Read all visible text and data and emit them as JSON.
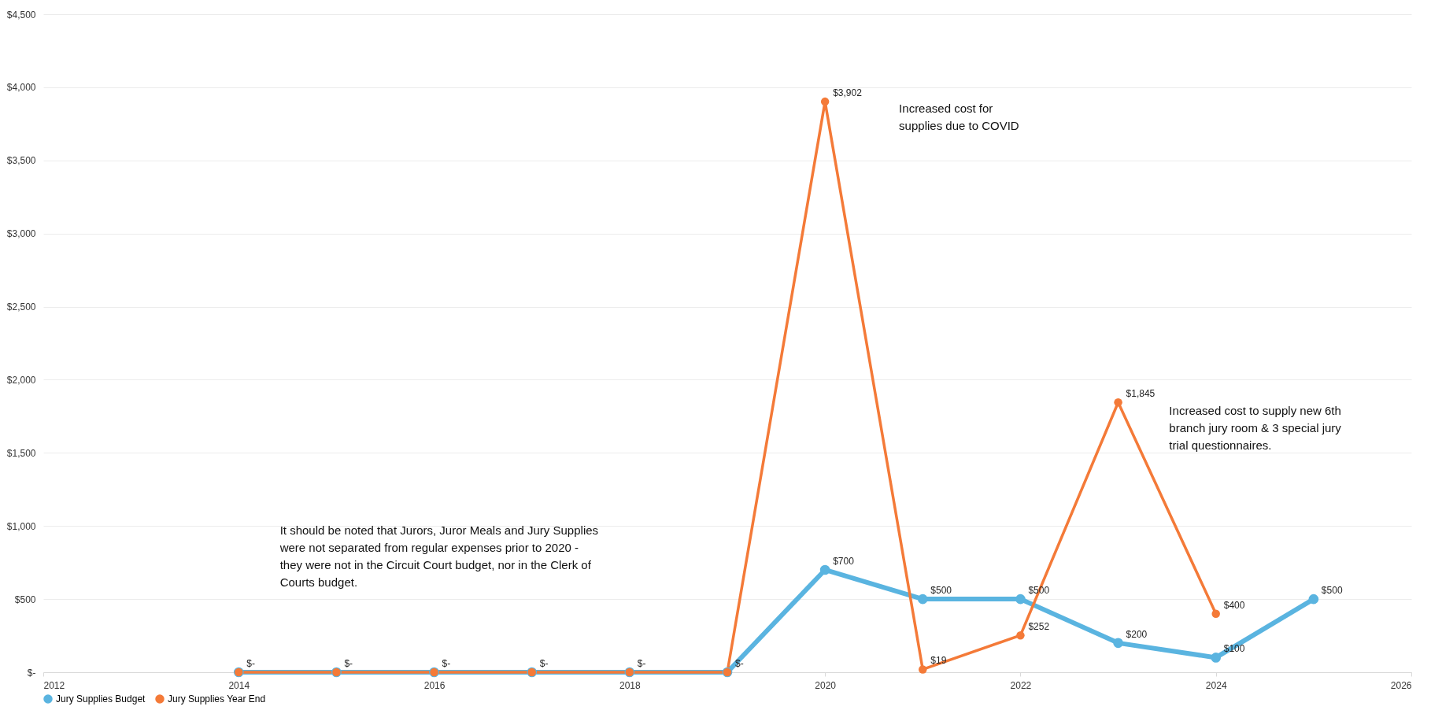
{
  "chart_data": {
    "type": "line",
    "x": [
      2014,
      2015,
      2016,
      2017,
      2018,
      2019,
      2020,
      2021,
      2022,
      2023,
      2024,
      2025
    ],
    "series": [
      {
        "name": "Jury Supplies Budget",
        "color": "#5ab4e0",
        "values": [
          0,
          0,
          0,
          0,
          0,
          0,
          700,
          500,
          500,
          200,
          100,
          500
        ],
        "value_labels": [
          null,
          null,
          null,
          null,
          null,
          null,
          "$700",
          "$500",
          "$500",
          "$200",
          "$100",
          "$500"
        ]
      },
      {
        "name": "Jury Supplies Year End",
        "color": "#f47a38",
        "values": [
          0,
          0,
          0,
          0,
          0,
          0,
          3902,
          19,
          252,
          1845,
          400,
          null
        ],
        "value_labels": [
          "$-",
          "$-",
          "$-",
          "$-",
          "$-",
          "$-",
          "$3,902",
          "$19",
          "$252",
          "$1,845",
          "$400",
          null
        ]
      }
    ],
    "xlim": [
      2012,
      2026
    ],
    "xticks": [
      2012,
      2014,
      2016,
      2018,
      2020,
      2022,
      2024,
      2026
    ],
    "ylim": [
      0,
      4500
    ],
    "yticks": [
      {
        "value": 0,
        "label": "$-"
      },
      {
        "value": 500,
        "label": "$500"
      },
      {
        "value": 1000,
        "label": "$1,000"
      },
      {
        "value": 1500,
        "label": "$1,500"
      },
      {
        "value": 2000,
        "label": "$2,000"
      },
      {
        "value": 2500,
        "label": "$2,500"
      },
      {
        "value": 3000,
        "label": "$3,000"
      },
      {
        "value": 3500,
        "label": "$3,500"
      },
      {
        "value": 4000,
        "label": "$4,000"
      },
      {
        "value": 4500,
        "label": "$4,500"
      }
    ],
    "grid": "y",
    "legend": "bottom",
    "marker": "circle",
    "line_style": "solid",
    "annotations": [
      "Increased cost for\nsupplies due to COVID",
      "Increased cost to supply new 6th\nbranch jury room & 3 special jury\ntrial questionnaires.",
      "It should be noted that Jurors, Juror Meals and Jury Supplies\nwere not separated from regular expenses prior to 2020 -\nthey were not in the Circuit Court budget, nor in the Clerk of\nCourts budget."
    ]
  }
}
